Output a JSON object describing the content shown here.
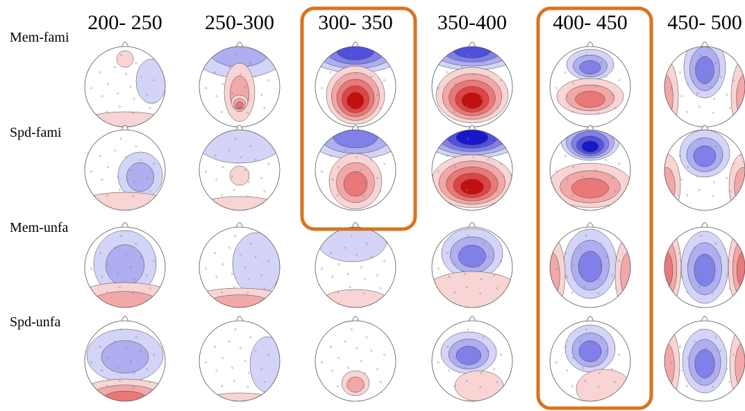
{
  "columns": [
    "200- 250",
    "250-300",
    "300- 350",
    "350-400",
    "400- 450",
    "450- 500"
  ],
  "rows": [
    "Mem-fami",
    "Spd-fami",
    "Mem-unfa",
    "Spd-unfa"
  ]
}
